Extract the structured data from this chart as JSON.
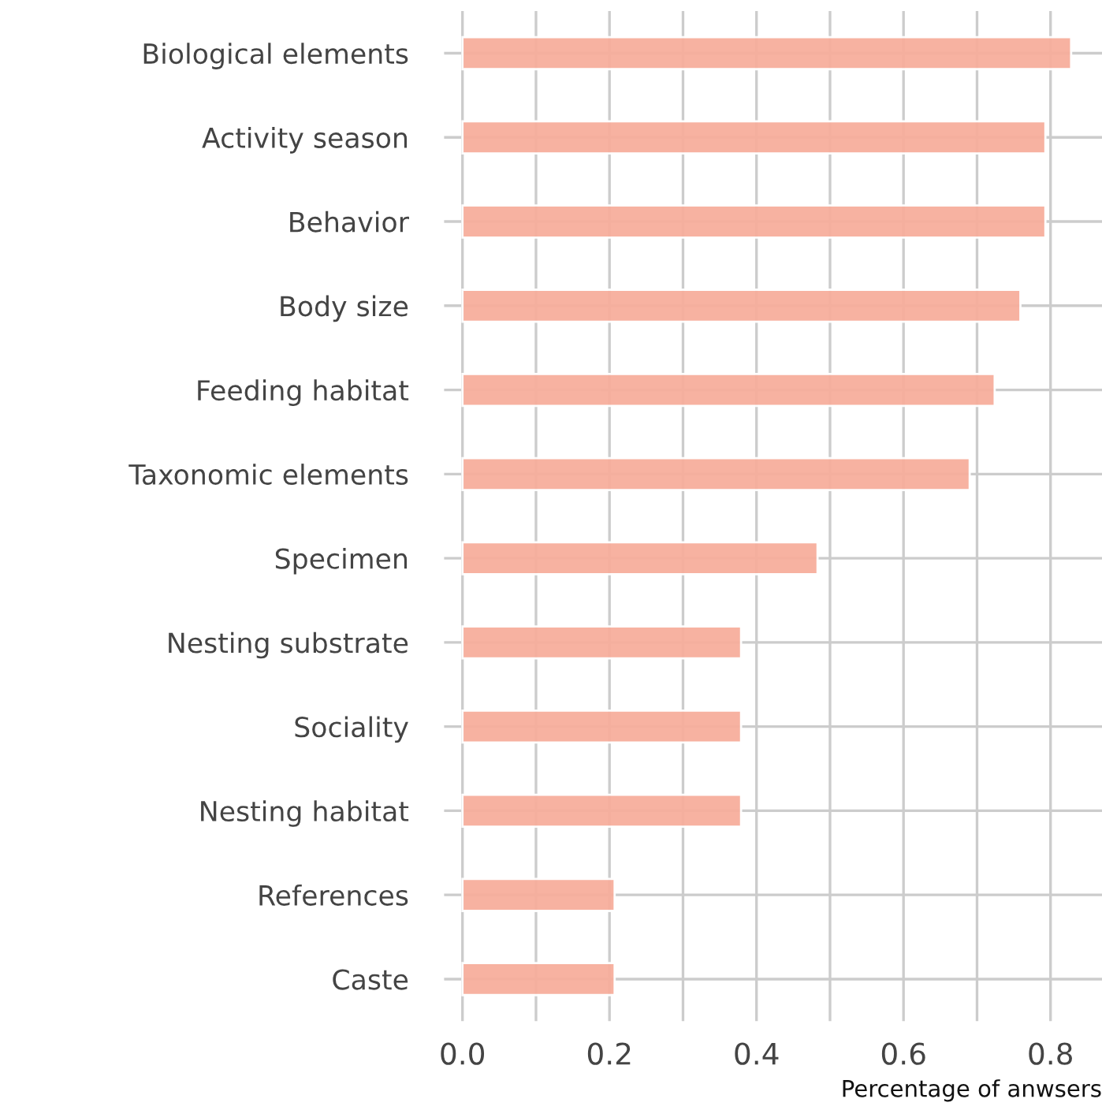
{
  "chart_data": {
    "type": "bar",
    "orientation": "horizontal",
    "xlabel": "Percentage of anwsers",
    "categories": [
      "Biological elements",
      "Activity season",
      "Behavior",
      "Body size",
      "Feeding habitat",
      "Taxonomic elements",
      "Specimen",
      "Nesting substrate",
      "Sociality",
      "Nesting habitat",
      "References",
      "Caste"
    ],
    "values": [
      0.828,
      0.793,
      0.793,
      0.759,
      0.724,
      0.69,
      0.483,
      0.379,
      0.379,
      0.379,
      0.207,
      0.207
    ],
    "color": "#f7ae9c",
    "xlim": [
      -0.025,
      0.87
    ],
    "xticks": [
      {
        "value": 0,
        "label": "0.0"
      },
      {
        "value": 0.1,
        "label": null
      },
      0.2,
      {
        "value": 0.3,
        "label": null
      },
      0.4,
      {
        "value": 0.5,
        "label": null
      },
      0.6,
      {
        "value": 0.7,
        "label": null
      },
      0.8
    ],
    "grid": true
  }
}
